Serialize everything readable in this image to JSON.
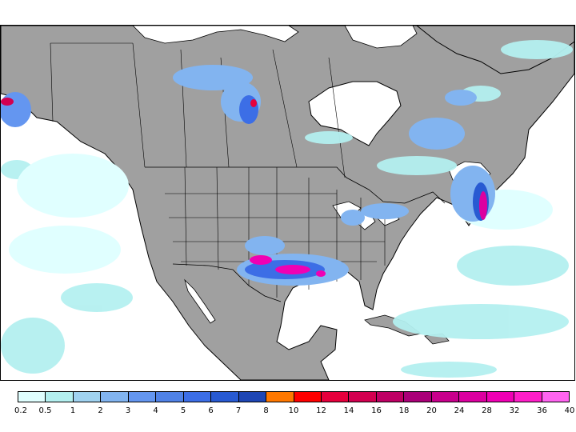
{
  "map": {
    "land_color": "#a0a0a0",
    "ocean_color": "#ffffff",
    "border_color": "#000000"
  },
  "legend": {
    "colors": [
      "#e0ffff",
      "#b4f0f0",
      "#a0d2f0",
      "#82b4f0",
      "#6496f0",
      "#5082e6",
      "#3c6ee6",
      "#285ad2",
      "#1e46b4",
      "#ff7800",
      "#ff0000",
      "#e6003c",
      "#d20050",
      "#be0064",
      "#aa0078",
      "#c8008c",
      "#dc00a0",
      "#f000b4",
      "#ff1ec8",
      "#ff64f0"
    ],
    "labels": [
      "0.2",
      "0.5",
      "1",
      "2",
      "3",
      "4",
      "5",
      "6",
      "7",
      "8",
      "10",
      "12",
      "14",
      "16",
      "18",
      "20",
      "24",
      "28",
      "32",
      "36",
      "40"
    ]
  }
}
